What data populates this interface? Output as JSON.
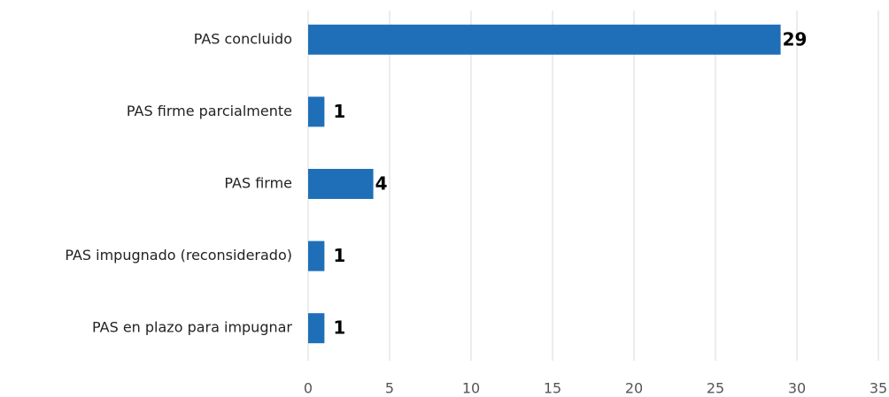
{
  "chart_data": {
    "type": "hbar",
    "categories": [
      "PAS concluido",
      "PAS firme parcialmente",
      "PAS firme",
      "PAS impugnado (reconsiderado)",
      "PAS en plazo para impugnar"
    ],
    "values": [
      29,
      1,
      4,
      1,
      1
    ],
    "color": "#1f6fb8",
    "xlim": [
      0,
      35
    ],
    "xticks": [
      0,
      5,
      10,
      15,
      20,
      25,
      30,
      35
    ],
    "grid": true
  }
}
